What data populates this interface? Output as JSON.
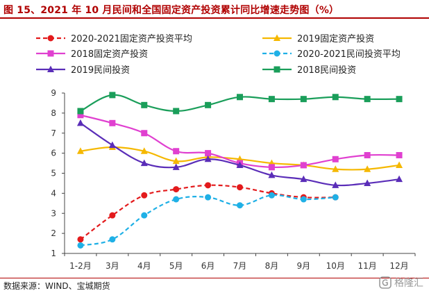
{
  "title": "图 15、2021 年 10 月民间和全国固定资产投资累计同比增速走势图（%）",
  "source": "数据来源：WIND、宝城期货",
  "watermark": {
    "text": "格隆汇",
    "icon": "logo-icon"
  },
  "chart_data": {
    "type": "line",
    "categories": [
      "1-2月",
      "3月",
      "4月",
      "5月",
      "6月",
      "7月",
      "8月",
      "9月",
      "10月",
      "11月",
      "12月"
    ],
    "ylim": [
      1,
      9
    ],
    "yticks": [
      1,
      2,
      3,
      4,
      5,
      6,
      7,
      8,
      9
    ],
    "grid": false,
    "legend_position": "top",
    "series": [
      {
        "name": "2020-2021固定资产投资平均",
        "color": "#e31a1c",
        "dashed": true,
        "marker": "circle",
        "values": [
          1.7,
          2.9,
          3.9,
          4.2,
          4.4,
          4.3,
          4.0,
          3.8,
          3.8,
          null,
          null
        ]
      },
      {
        "name": "2019固定资产投资",
        "color": "#f5b800",
        "dashed": false,
        "marker": "triangle",
        "values": [
          6.1,
          6.3,
          6.1,
          5.6,
          5.8,
          5.7,
          5.5,
          5.4,
          5.2,
          5.2,
          5.4
        ]
      },
      {
        "name": "2018固定资产投资",
        "color": "#e040d0",
        "dashed": false,
        "marker": "square",
        "values": [
          7.9,
          7.5,
          7.0,
          6.1,
          6.0,
          5.5,
          5.3,
          5.4,
          5.7,
          5.9,
          5.9
        ]
      },
      {
        "name": "2020-2021民间投资平均",
        "color": "#1fb0e6",
        "dashed": true,
        "marker": "circle",
        "values": [
          1.4,
          1.7,
          2.9,
          3.7,
          3.8,
          3.4,
          3.9,
          3.7,
          3.8,
          null,
          null
        ]
      },
      {
        "name": "2019民间投资",
        "color": "#5a2db8",
        "dashed": false,
        "marker": "triangle",
        "values": [
          7.5,
          6.4,
          5.5,
          5.3,
          5.7,
          5.4,
          4.9,
          4.7,
          4.4,
          4.5,
          4.7
        ]
      },
      {
        "name": "2018民间投资",
        "color": "#1a9e5a",
        "dashed": false,
        "marker": "square",
        "values": [
          8.1,
          8.9,
          8.4,
          8.1,
          8.4,
          8.8,
          8.7,
          8.7,
          8.8,
          8.7,
          8.7
        ]
      }
    ]
  }
}
